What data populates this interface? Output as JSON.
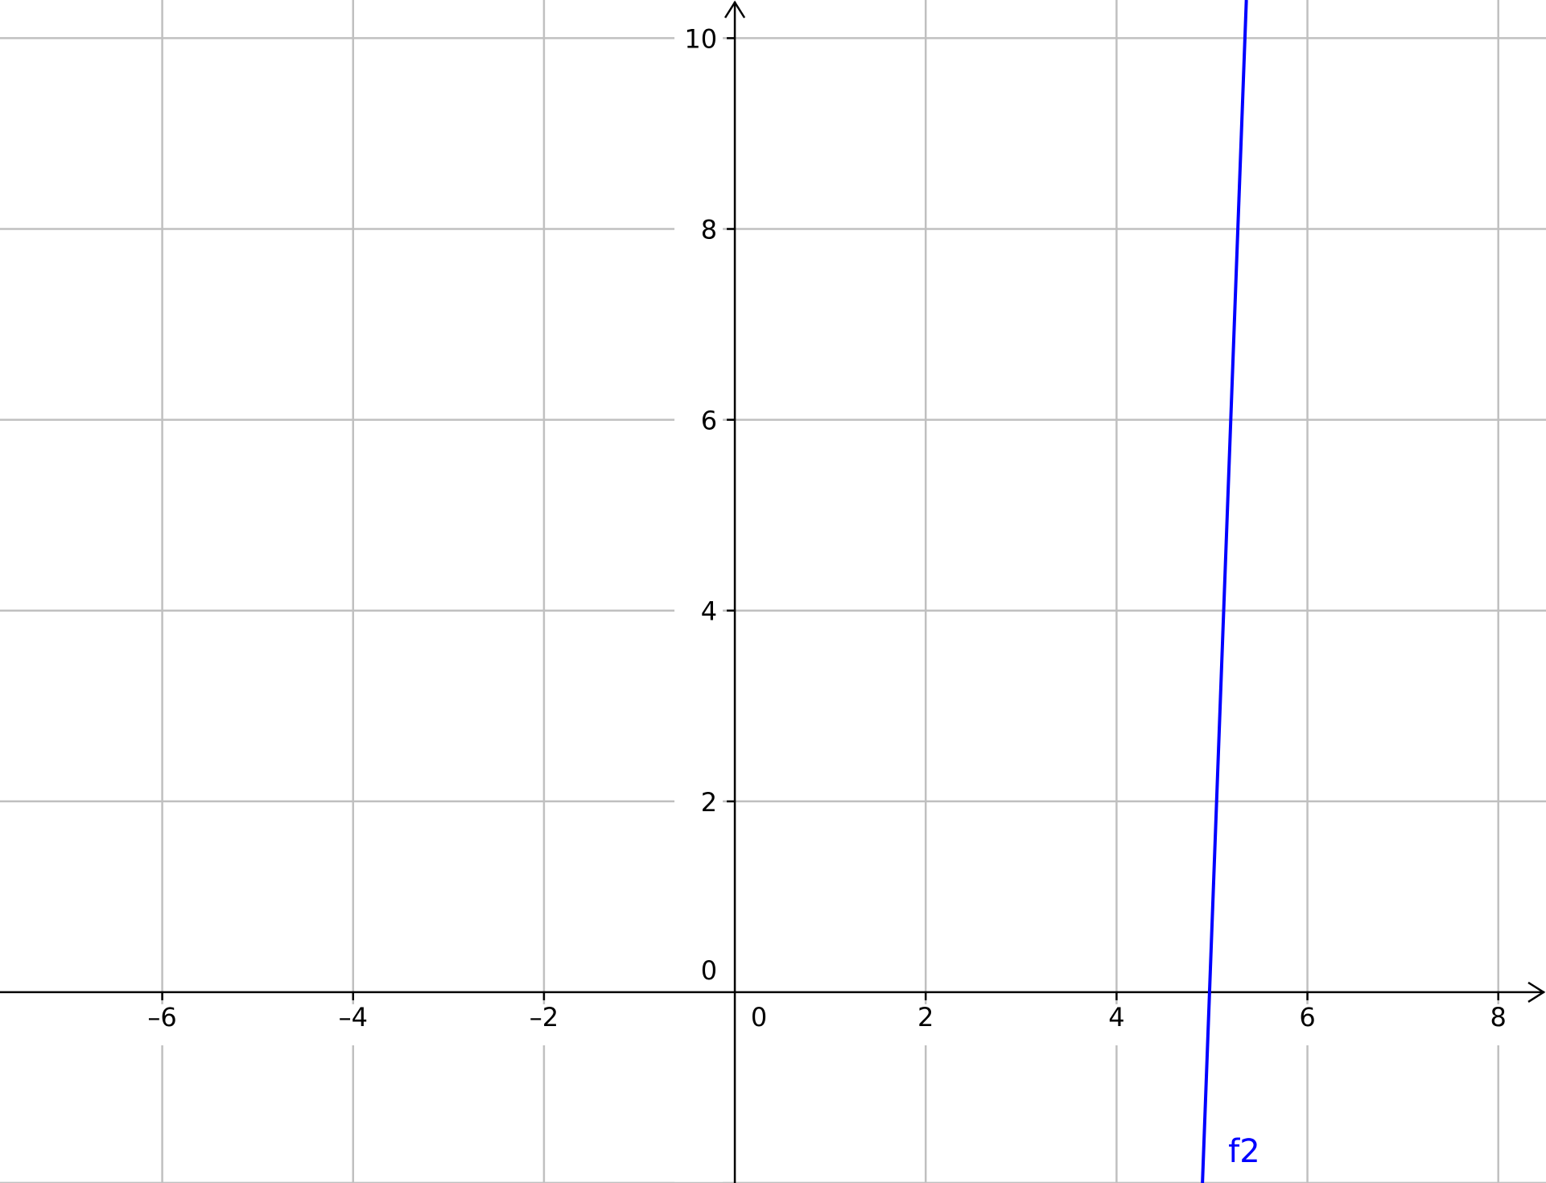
{
  "chart_data": {
    "type": "line",
    "title": "",
    "xlabel": "",
    "ylabel": "",
    "xlim": [
      -7.7,
      8.5
    ],
    "ylim": [
      -2,
      10.4
    ],
    "grid": true,
    "x_ticks": [
      -6,
      -4,
      -2,
      0,
      2,
      4,
      6,
      8
    ],
    "y_ticks": [
      0,
      2,
      4,
      6,
      8,
      10
    ],
    "series": [
      {
        "name": "f2",
        "color": "#0000ff",
        "x": [
          4.9,
          5.36
        ],
        "y": [
          -2.0,
          10.4
        ]
      }
    ]
  }
}
